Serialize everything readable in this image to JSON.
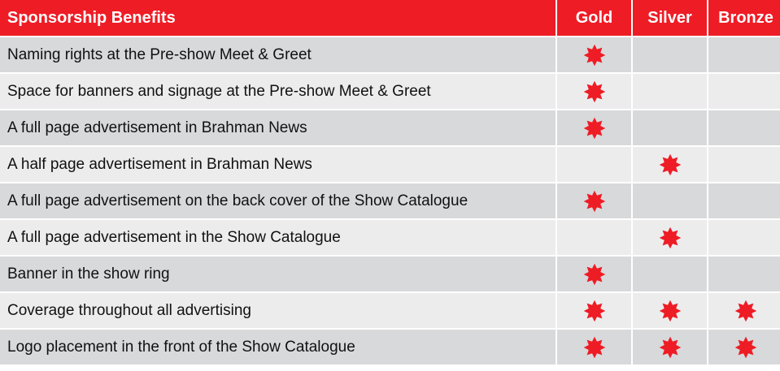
{
  "colors": {
    "header_bg": "#ee1c25",
    "star": "#ee1c25",
    "row_dark": "#d8d9db",
    "row_light": "#ececed"
  },
  "header": {
    "benefits": "Sponsorship Benefits",
    "gold": "Gold",
    "silver": "Silver",
    "bronze": "Bronze"
  },
  "rows": [
    {
      "label": "Naming rights at the Pre-show Meet & Greet",
      "gold": true,
      "silver": false,
      "bronze": false
    },
    {
      "label": "Space for banners and signage at the Pre-show Meet & Greet",
      "gold": true,
      "silver": false,
      "bronze": false
    },
    {
      "label": "A full page advertisement in Brahman News",
      "gold": true,
      "silver": false,
      "bronze": false
    },
    {
      "label": "A half page advertisement in Brahman News",
      "gold": false,
      "silver": true,
      "bronze": false
    },
    {
      "label": "A full page advertisement on the back cover of the Show Catalogue",
      "gold": true,
      "silver": false,
      "bronze": false
    },
    {
      "label": "A full page advertisement in the Show Catalogue",
      "gold": false,
      "silver": true,
      "bronze": false
    },
    {
      "label": "Banner in the show ring",
      "gold": true,
      "silver": false,
      "bronze": false
    },
    {
      "label": "Coverage throughout all advertising",
      "gold": true,
      "silver": true,
      "bronze": true
    },
    {
      "label": "Logo placement in the front of the Show Catalogue",
      "gold": true,
      "silver": true,
      "bronze": true
    }
  ],
  "icons": {
    "mark": "star-icon"
  }
}
